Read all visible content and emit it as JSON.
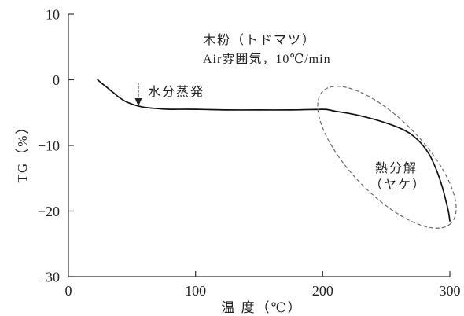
{
  "chart_data": {
    "type": "line",
    "xlabel": "温 度（℃）",
    "ylabel": "TG（%）",
    "xlim": [
      0,
      300
    ],
    "ylim": [
      -30,
      10
    ],
    "xticks": [
      0,
      100,
      200,
      300
    ],
    "xtick_labels": [
      "0",
      "100",
      "200",
      "300"
    ],
    "yticks": [
      10,
      0,
      -10,
      -20,
      -30
    ],
    "ytick_labels": [
      "10",
      "0",
      "−10",
      "−20",
      "−30"
    ],
    "grid": false,
    "series": [
      {
        "color": "#111111",
        "x": [
          23,
          26,
          30,
          33,
          35,
          40,
          45,
          50,
          55,
          60,
          70,
          80,
          100,
          125,
          150,
          175,
          200,
          205,
          210,
          220,
          230,
          240,
          250,
          260,
          268,
          275,
          280,
          285,
          290,
          294,
          297,
          299,
          300
        ],
        "y": [
          0.0,
          -0.5,
          -1.1,
          -1.6,
          -1.9,
          -2.7,
          -3.3,
          -3.7,
          -4.0,
          -4.2,
          -4.4,
          -4.5,
          -4.5,
          -4.6,
          -4.6,
          -4.6,
          -4.5,
          -4.6,
          -4.8,
          -5.1,
          -5.5,
          -6.0,
          -6.6,
          -7.3,
          -8.1,
          -9.2,
          -10.3,
          -11.8,
          -14.0,
          -16.3,
          -18.5,
          -20.2,
          -21.5
        ]
      }
    ],
    "annotations": {
      "sample": "木粉（トドマツ）",
      "conditions": "Air雰囲気，10℃/min",
      "moisture_evaporation": "水分蒸発",
      "decomposition": "熱分解",
      "decomposition_note": "（ヤケ）"
    }
  },
  "colors": {
    "axis": "#333333",
    "text": "#222222",
    "region_outline": "#6b6b6b",
    "arrow": "#555555"
  }
}
